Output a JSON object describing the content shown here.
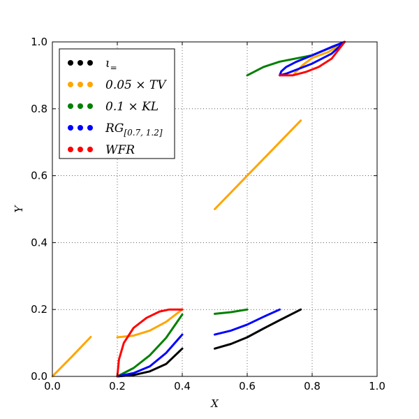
{
  "chart_data": {
    "type": "scatter",
    "xlabel": "X",
    "ylabel": "Y",
    "xlim": [
      0.0,
      1.0
    ],
    "ylim": [
      0.0,
      1.0
    ],
    "xticks": [
      "0.0",
      "0.2",
      "0.4",
      "0.6",
      "0.8",
      "1.0"
    ],
    "yticks": [
      "0.0",
      "0.2",
      "0.4",
      "0.6",
      "0.8",
      "1.0"
    ],
    "grid": true,
    "legend_position": "top-left",
    "legend": [
      {
        "main": "ι",
        "sub": "=",
        "color": "#000000"
      },
      {
        "main": "0.05 × TV",
        "sub": "",
        "color": "#ffa500"
      },
      {
        "main": "0.1 × KL",
        "sub": "",
        "color": "#008000"
      },
      {
        "main": "RG",
        "sub": "[0.7, 1.2]",
        "color": "#0000ff"
      },
      {
        "main": "WFR",
        "sub": "",
        "color": "#ff0000"
      }
    ],
    "series": [
      {
        "color": "#000000",
        "segments": [
          [
            [
              0.2,
              0.0
            ],
            [
              0.25,
              0.004
            ],
            [
              0.3,
              0.015
            ],
            [
              0.35,
              0.037
            ],
            [
              0.4,
              0.083
            ]
          ],
          [
            [
              0.5,
              0.083
            ],
            [
              0.55,
              0.097
            ],
            [
              0.6,
              0.117
            ],
            [
              0.65,
              0.143
            ],
            [
              0.7,
              0.168
            ],
            [
              0.765,
              0.2
            ]
          ]
        ]
      },
      {
        "color": "#ffa500",
        "segments": [
          [
            [
              0.0,
              0.0
            ],
            [
              0.06,
              0.059
            ],
            [
              0.118,
              0.118
            ]
          ],
          [
            [
              0.2,
              0.117
            ],
            [
              0.25,
              0.122
            ],
            [
              0.3,
              0.137
            ],
            [
              0.35,
              0.163
            ],
            [
              0.4,
              0.2
            ]
          ],
          [
            [
              0.5,
              0.5
            ],
            [
              0.6,
              0.6
            ],
            [
              0.7,
              0.7
            ],
            [
              0.765,
              0.765
            ]
          ],
          [
            [
              0.745,
              0.905
            ],
            [
              0.77,
              0.93
            ],
            [
              0.8,
              0.952
            ],
            [
              0.85,
              0.97
            ],
            [
              0.9,
              1.0
            ]
          ]
        ]
      },
      {
        "color": "#008000",
        "segments": [
          [
            [
              0.2,
              0.0
            ],
            [
              0.25,
              0.025
            ],
            [
              0.3,
              0.063
            ],
            [
              0.35,
              0.115
            ],
            [
              0.4,
              0.185
            ]
          ],
          [
            [
              0.5,
              0.187
            ],
            [
              0.55,
              0.192
            ],
            [
              0.6,
              0.2
            ]
          ],
          [
            [
              0.6,
              0.9
            ],
            [
              0.65,
              0.925
            ],
            [
              0.7,
              0.941
            ],
            [
              0.8,
              0.96
            ],
            [
              0.9,
              1.0
            ]
          ]
        ]
      },
      {
        "color": "#0000ff",
        "segments": [
          [
            [
              0.2,
              0.0
            ],
            [
              0.25,
              0.01
            ],
            [
              0.3,
              0.03
            ],
            [
              0.35,
              0.07
            ],
            [
              0.4,
              0.125
            ]
          ],
          [
            [
              0.5,
              0.125
            ],
            [
              0.55,
              0.137
            ],
            [
              0.6,
              0.155
            ],
            [
              0.65,
              0.178
            ],
            [
              0.7,
              0.2
            ]
          ],
          [
            [
              0.9,
              1.0
            ],
            [
              0.86,
              0.985
            ],
            [
              0.8,
              0.96
            ],
            [
              0.75,
              0.94
            ],
            [
              0.72,
              0.925
            ],
            [
              0.705,
              0.912
            ],
            [
              0.7,
              0.9
            ],
            [
              0.72,
              0.905
            ],
            [
              0.8,
              0.935
            ],
            [
              0.86,
              0.965
            ],
            [
              0.9,
              1.0
            ]
          ]
        ]
      },
      {
        "color": "#ff0000",
        "segments": [
          [
            [
              0.2,
              0.0
            ],
            [
              0.205,
              0.05
            ],
            [
              0.22,
              0.1
            ],
            [
              0.25,
              0.145
            ],
            [
              0.29,
              0.175
            ],
            [
              0.33,
              0.194
            ],
            [
              0.36,
              0.2
            ],
            [
              0.4,
              0.2
            ]
          ],
          [
            [
              0.7,
              0.9
            ],
            [
              0.74,
              0.9
            ],
            [
              0.78,
              0.91
            ],
            [
              0.82,
              0.925
            ],
            [
              0.86,
              0.95
            ],
            [
              0.88,
              0.975
            ],
            [
              0.9,
              1.0
            ]
          ]
        ]
      }
    ]
  }
}
